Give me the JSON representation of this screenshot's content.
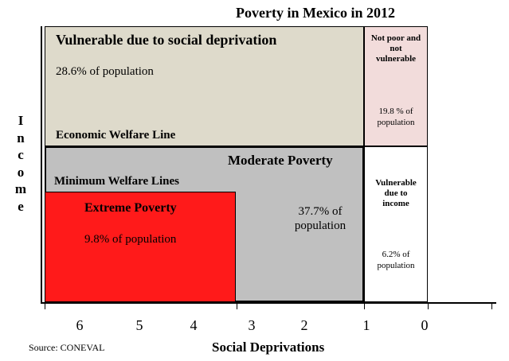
{
  "title": "Poverty in Mexico in 2012",
  "quadrants": {
    "vulnerable_social": {
      "label": "Vulnerable due to social deprivation",
      "value": "28.6% of population",
      "line_label": "Economic Welfare Line"
    },
    "not_poor": {
      "label_line1": "Not poor and",
      "label_line2": "not",
      "label_line3": "vulnerable",
      "value_line1": "19.8 % of",
      "value_line2": "population"
    },
    "moderate": {
      "label": "Moderate Poverty",
      "line_label": "Minimum Welfare Lines",
      "value_line1": "37.7% of",
      "value_line2": "population"
    },
    "extreme": {
      "label": "Extreme Poverty",
      "value": "9.8% of population"
    },
    "vulnerable_income": {
      "label_line1": "Vulnerable",
      "label_line2": "due to",
      "label_line3": "income",
      "value_line1": "6.2% of",
      "value_line2": "population"
    }
  },
  "axes": {
    "y_label_letters": [
      "I",
      "n",
      "c",
      "o",
      "m",
      "e"
    ],
    "x_label": "Social Deprivations",
    "x_ticks": [
      "6",
      "5",
      "4",
      "3",
      "2",
      "1",
      "0"
    ]
  },
  "source": "Source: CONEVAL"
}
